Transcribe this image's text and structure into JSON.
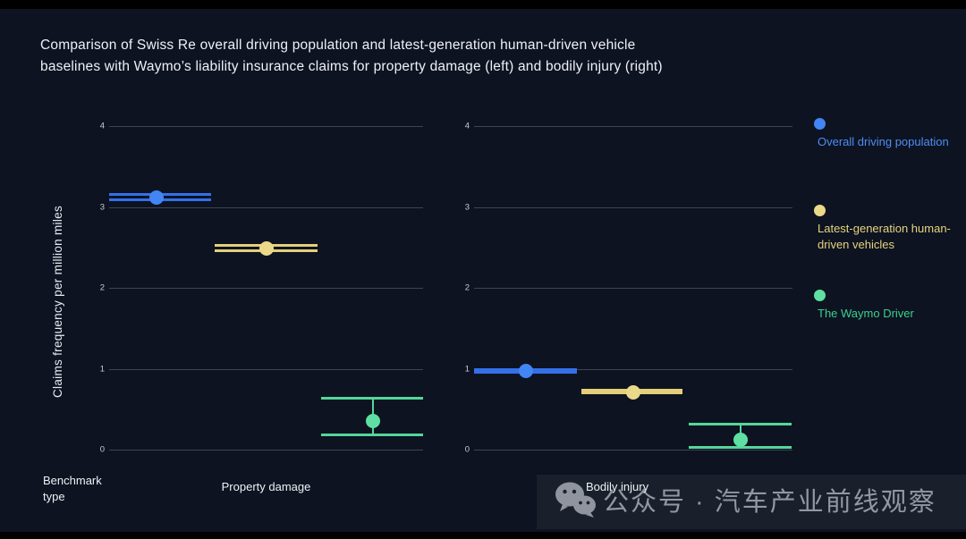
{
  "title": "Comparison of Swiss Re overall driving population and latest-generation human-driven vehicle baselines with Waymo’s liability insurance claims for property damage (left) and bodily injury (right)",
  "xaxis_title": "Benchmark type",
  "colors": {
    "page_background": "#000000",
    "figure_background": "#0d1321",
    "gridline": "#3d4452",
    "tick_text": "#c7ccd6",
    "title_text": "#eef1f6",
    "watermark_band": "#1a202b",
    "watermark_text": "#9298a2"
  },
  "legend": [
    {
      "label": "Overall driving population",
      "color": "#4285f4",
      "text_color": "#4f8df2"
    },
    {
      "label": "Latest-generation human-driven vehicles",
      "color": "#ead989",
      "text_color": "#e6d37e"
    },
    {
      "label": "The Waymo Driver",
      "color": "#5fdfa2",
      "text_color": "#3bd08f"
    }
  ],
  "chart_data": [
    {
      "type": "scatter",
      "xlabel": "Property damage",
      "ylabel": "Claims frequency per million miles",
      "ylim": [
        0,
        4
      ],
      "yticks": [
        0,
        1,
        2,
        3,
        4
      ],
      "grid": true,
      "legend_position": "right",
      "series": [
        {
          "name": "Overall driving population",
          "color": "#3470e8",
          "dot_color": "#4285f4",
          "value": 3.12,
          "ci": [
            3.09,
            3.16
          ],
          "x_center": 0.15,
          "x_span": [
            0.0,
            0.325
          ]
        },
        {
          "name": "Latest-generation human-driven vehicles",
          "color": "#e3cf78",
          "dot_color": "#ead989",
          "value": 2.49,
          "ci": [
            2.46,
            2.53
          ],
          "x_center": 0.5,
          "x_span": [
            0.337,
            0.663
          ]
        },
        {
          "name": "The Waymo Driver",
          "color": "#55d69a",
          "dot_color": "#5fdfa2",
          "value": 0.35,
          "ci": [
            0.18,
            0.63
          ],
          "x_center": 0.84,
          "x_span": [
            0.675,
            1.0
          ]
        }
      ]
    },
    {
      "type": "scatter",
      "xlabel": "Bodily injury",
      "ylabel": "Claims frequency per million miles",
      "ylim": [
        0,
        4
      ],
      "yticks": [
        0,
        1,
        2,
        3,
        4
      ],
      "grid": true,
      "legend_position": "right",
      "series": [
        {
          "name": "Overall driving population",
          "color": "#3470e8",
          "dot_color": "#4285f4",
          "value": 0.97,
          "ci": [
            0.96,
            0.99
          ],
          "x_center": 0.163,
          "x_span": [
            0.0,
            0.323
          ]
        },
        {
          "name": "Latest-generation human-driven vehicles",
          "color": "#e3cf78",
          "dot_color": "#ead989",
          "value": 0.71,
          "ci": [
            0.7,
            0.73
          ],
          "x_center": 0.5,
          "x_span": [
            0.337,
            0.655
          ]
        },
        {
          "name": "The Waymo Driver",
          "color": "#55d69a",
          "dot_color": "#5fdfa2",
          "value": 0.12,
          "ci": [
            0.03,
            0.31
          ],
          "x_center": 0.838,
          "x_span": [
            0.674,
            0.997
          ]
        }
      ]
    }
  ],
  "watermark": {
    "icon": "wechat-icon",
    "text": "公众号 · 汽车产业前线观察"
  }
}
